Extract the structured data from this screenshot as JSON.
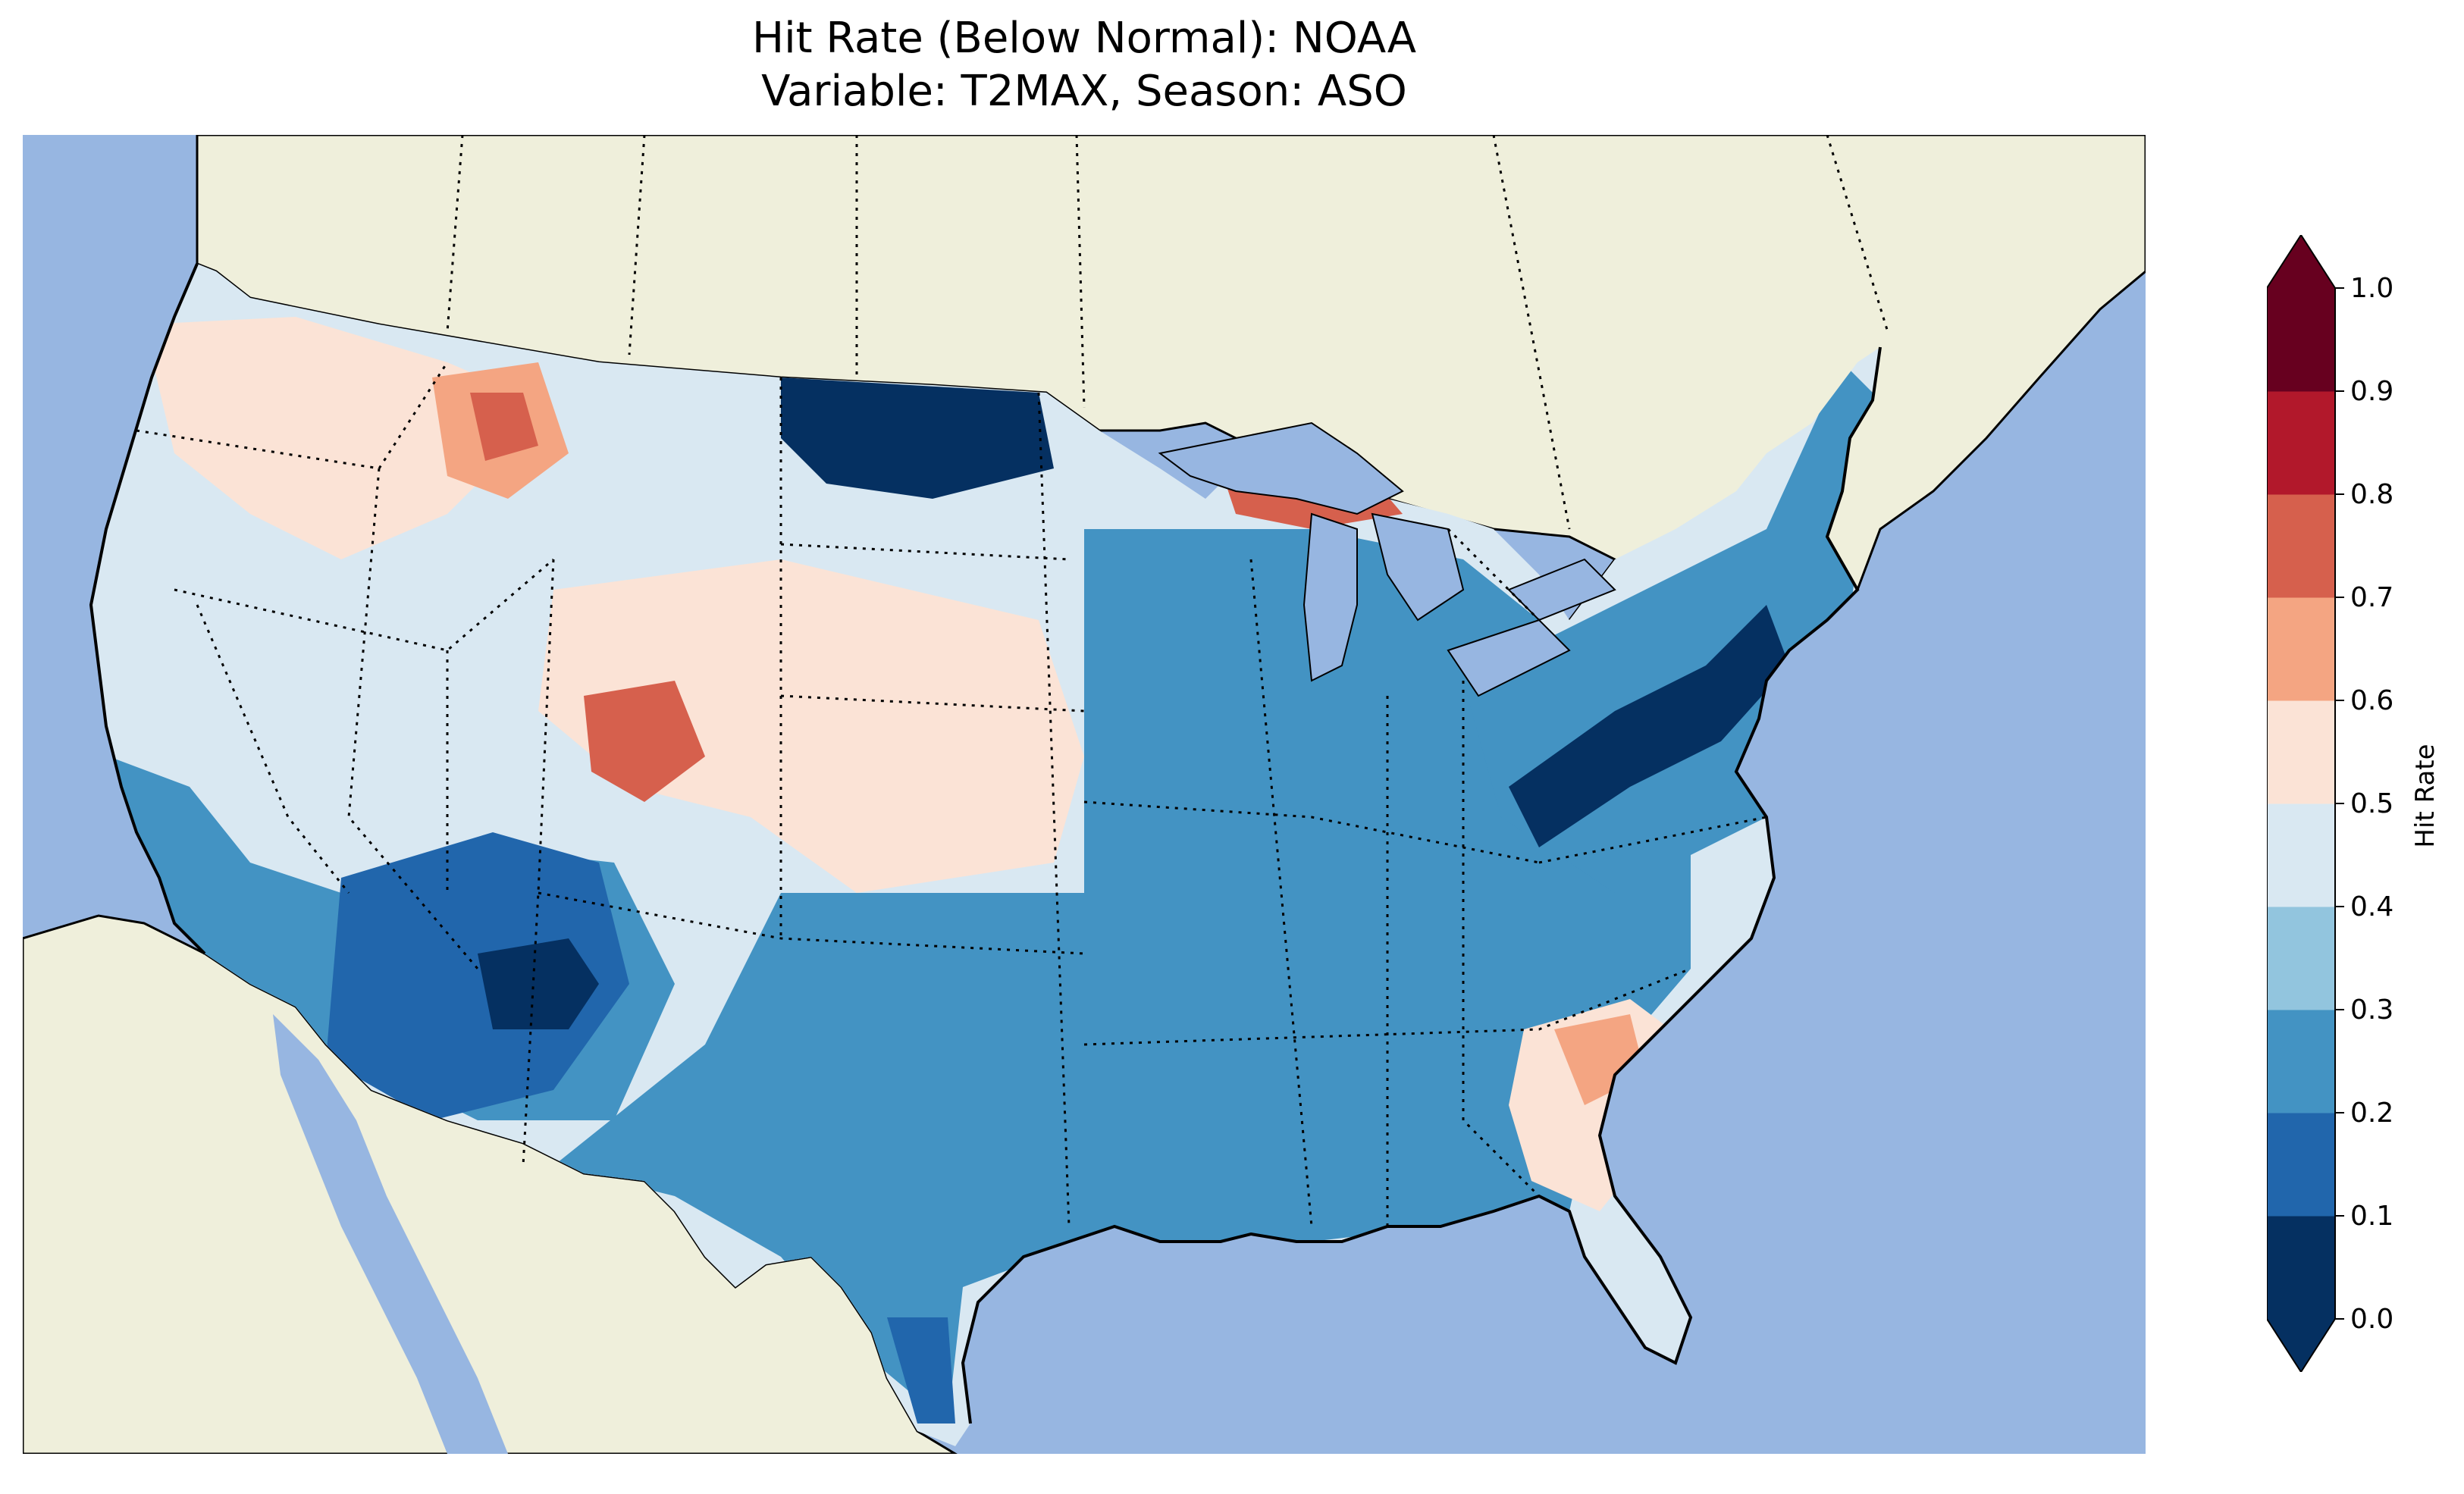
{
  "title_line1": "Hit Rate (Below Normal): NOAA",
  "title_line2": "Variable: T2MAX, Season: ASO",
  "colors": {
    "ocean": "#97b6e1",
    "land": "#efefdb",
    "lakes": "#97b6e1"
  },
  "colorbar": {
    "label": "Hit Rate",
    "extend": "both",
    "ticks": [
      "0.0",
      "0.1",
      "0.2",
      "0.3",
      "0.4",
      "0.5",
      "0.6",
      "0.7",
      "0.8",
      "0.9",
      "1.0"
    ],
    "bins": [
      {
        "range": [
          0.0,
          0.1
        ],
        "color": "#053061"
      },
      {
        "range": [
          0.1,
          0.2
        ],
        "color": "#2166ac"
      },
      {
        "range": [
          0.2,
          0.3
        ],
        "color": "#4393c3"
      },
      {
        "range": [
          0.3,
          0.4
        ],
        "color": "#92c5de"
      },
      {
        "range": [
          0.4,
          0.5
        ],
        "color": "#d9e8f2"
      },
      {
        "range": [
          0.5,
          0.6
        ],
        "color": "#fbe3d6"
      },
      {
        "range": [
          0.6,
          0.7
        ],
        "color": "#f4a582"
      },
      {
        "range": [
          0.7,
          0.8
        ],
        "color": "#d6604d"
      },
      {
        "range": [
          0.8,
          0.9
        ],
        "color": "#b2182b"
      },
      {
        "range": [
          0.9,
          1.0
        ],
        "color": "#67001f"
      }
    ]
  },
  "regions": [
    {
      "name": "northern-plains-low",
      "value": 0.05
    },
    {
      "name": "southwest-low",
      "value": 0.05
    },
    {
      "name": "northeast-corridor-low",
      "value": 0.05
    },
    {
      "name": "montana-high",
      "value": 0.65
    },
    {
      "name": "wyoming-colorado-high",
      "value": 0.65
    },
    {
      "name": "upper-michigan-high",
      "value": 0.7
    },
    {
      "name": "carolina-high",
      "value": 0.62
    },
    {
      "name": "texas-mid",
      "value": 0.25
    },
    {
      "name": "midwest-mid",
      "value": 0.25
    },
    {
      "name": "florida-light",
      "value": 0.45
    },
    {
      "name": "central-plains-light",
      "value": 0.55
    }
  ]
}
